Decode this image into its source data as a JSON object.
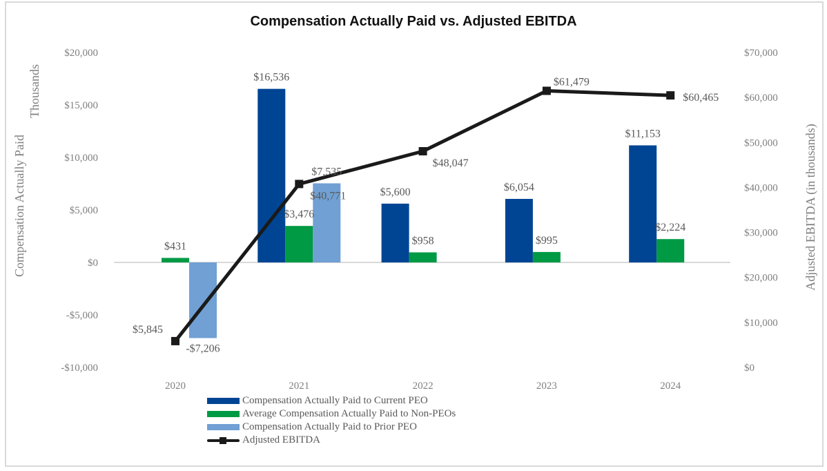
{
  "chart_data": {
    "type": "bar",
    "title": "Compensation Actually Paid vs. Adjusted EBITDA",
    "categories": [
      "2020",
      "2021",
      "2022",
      "2023",
      "2024"
    ],
    "ylabel": "Compensation Actually Paid",
    "ylabel_units": "Thousands",
    "ylabel_right": "Adjusted EBITDA (in thousands)",
    "ylim": [
      -10000,
      20000
    ],
    "ylim_right": [
      0,
      70000
    ],
    "yticks": [
      "$20,000",
      "$15,000",
      "$10,000",
      "$5,000",
      "$0",
      "-$5,000",
      "-$10,000"
    ],
    "ytick_values": [
      20000,
      15000,
      10000,
      5000,
      0,
      -5000,
      -10000
    ],
    "yticks_right": [
      "$70,000",
      "$60,000",
      "$50,000",
      "$40,000",
      "$30,000",
      "$20,000",
      "$10,000",
      "$0"
    ],
    "ytick_values_right": [
      70000,
      60000,
      50000,
      40000,
      30000,
      20000,
      10000,
      0
    ],
    "grid": false,
    "legend_position": "bottom",
    "series": [
      {
        "name": "Compensation Actually Paid to Current PEO",
        "type": "bar",
        "axis": "left",
        "color": "#004594",
        "values": [
          null,
          16536,
          5600,
          6054,
          11153
        ],
        "labels": [
          "",
          "$16,536",
          "$5,600",
          "$6,054",
          "$11,153"
        ]
      },
      {
        "name": "Average Compensation Actually Paid to Non-PEOs",
        "type": "bar",
        "axis": "left",
        "color": "#009a44",
        "values": [
          431,
          3476,
          958,
          995,
          2224
        ],
        "labels": [
          "$431",
          "$3,476",
          "$958",
          "$995",
          "$2,224"
        ]
      },
      {
        "name": "Compensation Actually Paid to Prior PEO",
        "type": "bar",
        "axis": "left",
        "color": "#70a0d4",
        "values": [
          -7206,
          7535,
          null,
          null,
          null
        ],
        "labels": [
          "-$7,206",
          "$7,535",
          "",
          "",
          ""
        ]
      },
      {
        "name": "Adjusted EBITDA",
        "type": "line",
        "axis": "right",
        "color": "#1a1a1a",
        "values": [
          5845,
          40771,
          48047,
          61479,
          60465
        ],
        "labels": [
          "$5,845",
          "$40,771",
          "$48,047",
          "$61,479",
          "$60,465"
        ]
      }
    ]
  }
}
